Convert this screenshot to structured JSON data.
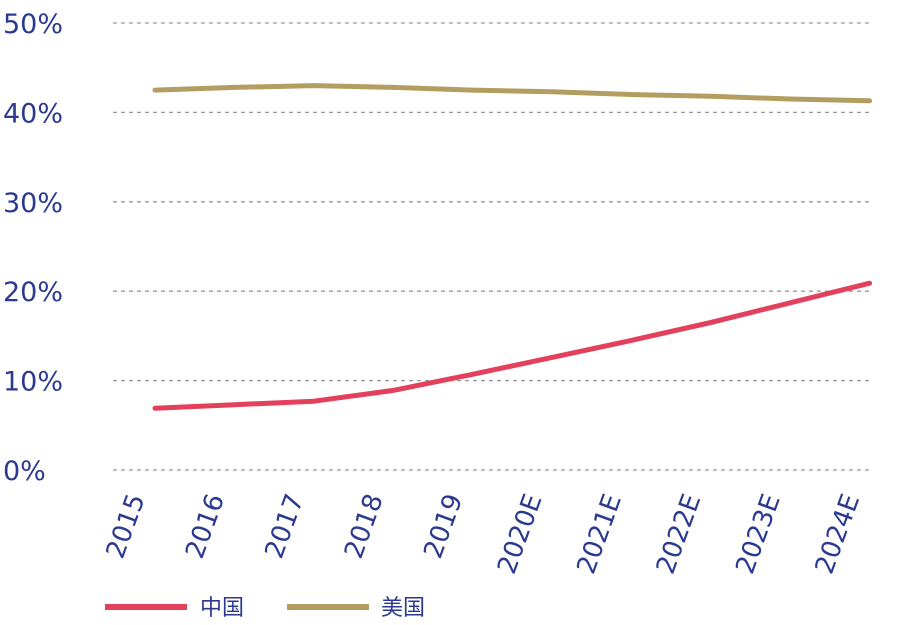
{
  "chart_data": {
    "type": "line",
    "categories": [
      "2015",
      "2016",
      "2017",
      "2018",
      "2019",
      "2020E",
      "2021E",
      "2022E",
      "2023E",
      "2024E"
    ],
    "series": [
      {
        "name": "中国",
        "color": "#e3405c",
        "values": [
          6.9,
          7.3,
          7.7,
          8.9,
          10.7,
          12.6,
          14.5,
          16.5,
          18.7,
          20.9
        ]
      },
      {
        "name": "美国",
        "color": "#b39e61",
        "values": [
          42.5,
          42.8,
          43.0,
          42.8,
          42.5,
          42.3,
          42.0,
          41.8,
          41.5,
          41.3
        ]
      }
    ],
    "y_ticks": [
      "0%",
      "10%",
      "20%",
      "30%",
      "40%",
      "50%"
    ],
    "ylim": [
      0,
      50
    ],
    "grid": true,
    "legend_position": "bottom-left"
  }
}
